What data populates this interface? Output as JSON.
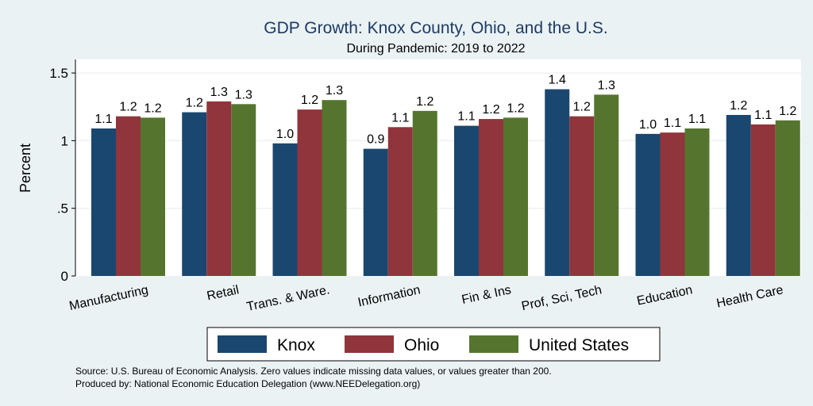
{
  "chart_data": {
    "type": "bar",
    "title": "GDP Growth: Knox County, Ohio, and the U.S.",
    "subtitle": "During Pandemic: 2019 to 2022",
    "ylabel": "Percent",
    "xlabel": "",
    "ylim": [
      0,
      1.6
    ],
    "yticks": [
      0,
      0.5,
      1,
      1.5
    ],
    "ytick_labels": [
      "0",
      ".5",
      "1",
      "1.5"
    ],
    "grid": true,
    "categories": [
      "Manufacturing",
      "Retail",
      "Trans. & Ware.",
      "Information",
      "Fin & Ins",
      "Prof, Sci, Tech",
      "Education",
      "Health Care"
    ],
    "series": [
      {
        "name": "Knox",
        "color": "#1a476f",
        "values": [
          1.09,
          1.21,
          0.98,
          0.94,
          1.11,
          1.38,
          1.05,
          1.19
        ],
        "labels": [
          "1.1",
          "1.2",
          "1.0",
          "0.9",
          "1.1",
          "1.4",
          "1.0",
          "1.2"
        ]
      },
      {
        "name": "Ohio",
        "color": "#90353b",
        "values": [
          1.18,
          1.29,
          1.23,
          1.1,
          1.16,
          1.18,
          1.06,
          1.12
        ],
        "labels": [
          "1.2",
          "1.3",
          "1.2",
          "1.1",
          "1.2",
          "1.2",
          "1.1",
          "1.1"
        ]
      },
      {
        "name": "United States",
        "color": "#55752f",
        "values": [
          1.17,
          1.27,
          1.3,
          1.22,
          1.17,
          1.34,
          1.09,
          1.15
        ],
        "labels": [
          "1.2",
          "1.3",
          "1.3",
          "1.2",
          "1.2",
          "1.3",
          "1.1",
          "1.2"
        ]
      }
    ],
    "legend_position": "bottom"
  },
  "notes": {
    "source": "Source: U.S. Bureau of Economic Analysis. Zero values indicate missing data values, or values greater than 200.",
    "produced_by": "Produced by: National Economic Education Delegation (www.NEEDelegation.org)"
  }
}
